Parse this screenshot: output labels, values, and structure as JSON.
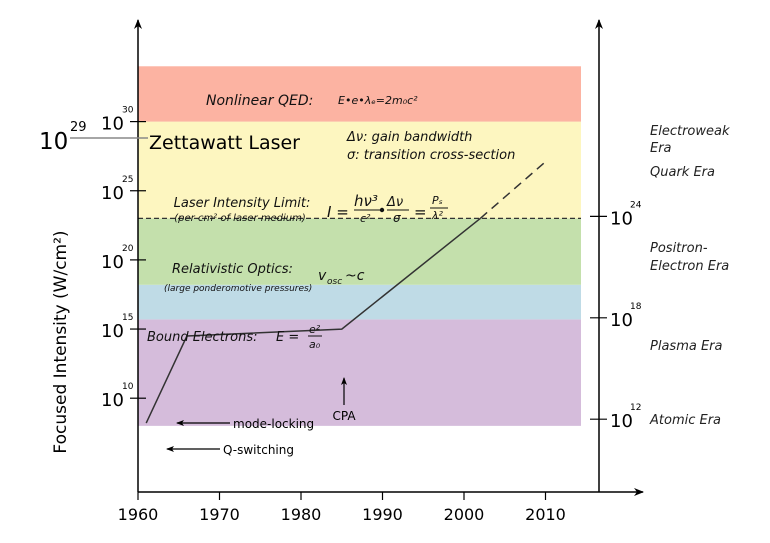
{
  "chart_data": {
    "type": "line",
    "title": "",
    "xlabel": "",
    "ylabel": "Focused Intensity (W/cm²)",
    "xlim": [
      1960,
      2015
    ],
    "ylim": [
      8,
      34
    ],
    "x_ticks": [
      1960,
      1970,
      1980,
      1990,
      2000,
      2010
    ],
    "y_ticks": [
      {
        "base": "10",
        "exp": "10",
        "value": 10
      },
      {
        "base": "10",
        "exp": "15",
        "value": 15
      },
      {
        "base": "10",
        "exp": "20",
        "value": 20
      },
      {
        "base": "10",
        "exp": "25",
        "value": 25
      },
      {
        "base": "10",
        "exp": "30",
        "value": 30
      }
    ],
    "series": [
      {
        "style": "solid",
        "x": [
          1961,
          1966,
          1985,
          2002
        ],
        "y": [
          8.2,
          14.5,
          15.0,
          23.0
        ]
      },
      {
        "style": "dashed",
        "x": [
          2002,
          2010
        ],
        "y": [
          23.0,
          27.1
        ]
      }
    ],
    "bands": [
      {
        "y_from": 8.0,
        "y_to": 15.7,
        "color": "#d5bcdb"
      },
      {
        "y_from": 15.7,
        "y_to": 18.2,
        "color": "#bfdbe6"
      },
      {
        "y_from": 18.2,
        "y_to": 23.0,
        "color": "#c4e0ac"
      },
      {
        "y_from": 23.0,
        "y_to": 30.0,
        "color": "#fdf6c0"
      },
      {
        "y_from": 30.0,
        "y_to": 34.0,
        "color": "#fcb3a2"
      }
    ],
    "threshold_dashed_at": 23.0,
    "right_axis": {
      "ticks": [
        {
          "base": "10",
          "exp": "12",
          "value": 12
        },
        {
          "base": "10",
          "exp": "18",
          "value": 18
        },
        {
          "base": "10",
          "exp": "24",
          "value": 24
        }
      ],
      "eras": [
        "Electroweak Era",
        "Quark Era",
        "Positron-Electron Era",
        "Plasma Era",
        "Atomic Era"
      ]
    },
    "annotations": {
      "zettawatt_base": "10",
      "zettawatt_exp": "29",
      "zettawatt_label": "Zettawatt Laser",
      "gain_bandwidth": "Δν: gain bandwidth",
      "cross_section": "σ: transition cross-section",
      "qed_label": "Nonlinear QED:",
      "qed_formula": "E•e•λₑ=2m₀c²",
      "laser_limit": "Laser Intensity Limit:",
      "laser_limit_sub": "(per cm² of laser medium)",
      "relativistic": "Relativistic Optics:",
      "relativistic_sub": "(large ponderomotive pressures)",
      "vosc": "v",
      "vosc_sub": "osc",
      "vosc_tail": "~c",
      "bound": "Bound Electrons:",
      "bound_formula": "E =",
      "mode_locking": "mode-locking",
      "q_switching": "Q-switching",
      "cpa": "CPA"
    }
  },
  "colors": {
    "axis": "#000000",
    "line": "#333333",
    "qed": "#fcb3a2",
    "zettawatt_band": "#fdf6c0",
    "relativistic_band": "#c4e0ac",
    "bound_band": "#bfdbe6",
    "atomic_band": "#d5bcdb"
  }
}
